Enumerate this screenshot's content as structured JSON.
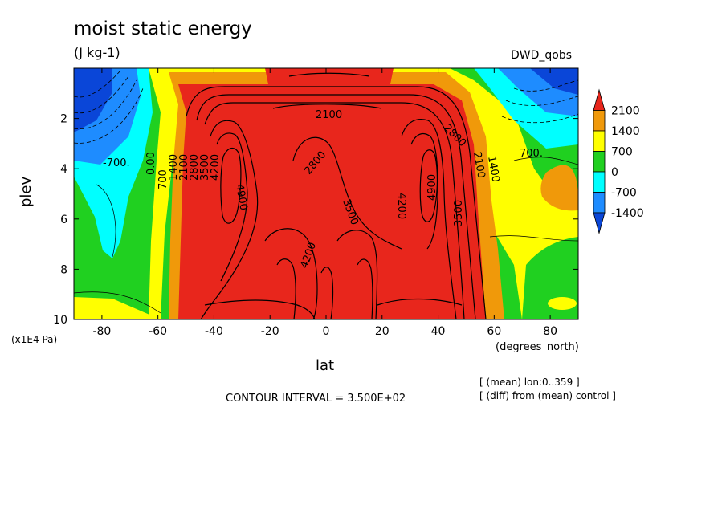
{
  "header": {
    "title": "moist static energy",
    "units": "(J kg-1)",
    "run_name": "DWD_qobs"
  },
  "footer": {
    "contour_interval": "CONTOUR INTERVAL = 3.500E+02",
    "note_mean": "[ (mean) lon:0..359 ]",
    "note_diff": "[ (diff) from (mean) control ]"
  },
  "chart_data": {
    "type": "heatmap",
    "title": "moist static energy",
    "units": "(J kg-1)",
    "xlabel": "lat",
    "x_unit": "(degrees_north)",
    "ylabel": "plev",
    "y_unit": "(x1E4 Pa)",
    "xlim": [
      -90,
      90
    ],
    "ylim": [
      10,
      0
    ],
    "x_ticks": [
      -80,
      -60,
      -40,
      -20,
      0,
      20,
      40,
      60,
      80
    ],
    "x_tick_labels": [
      "-80",
      "-60",
      "-40",
      "-20",
      "0",
      "20",
      "40",
      "60",
      "80"
    ],
    "y_ticks": [
      2,
      4,
      6,
      8,
      10
    ],
    "y_tick_labels": [
      "2",
      "4",
      "6",
      "8",
      "10"
    ],
    "contour_interval": 350,
    "colorbar": {
      "levels": [
        2100,
        1400,
        700,
        0,
        -700,
        -1400
      ],
      "labels": [
        "2100",
        "1400",
        "700",
        "0",
        "-700",
        "-1400"
      ],
      "colors": [
        "#e8261c",
        "#f0990a",
        "#ffff00",
        "#20d020",
        "#00ffff",
        "#1e8cff",
        "#0a46d8"
      ]
    },
    "contour_labels": [
      "-700.",
      "0.00",
      "700",
      "1400",
      "2100",
      "2800",
      "3500",
      "4200",
      "4900",
      "2100",
      "2800",
      "3500",
      "4200",
      "4200",
      "4900",
      "3500",
      "2800",
      "2100",
      "1400",
      "700."
    ]
  }
}
